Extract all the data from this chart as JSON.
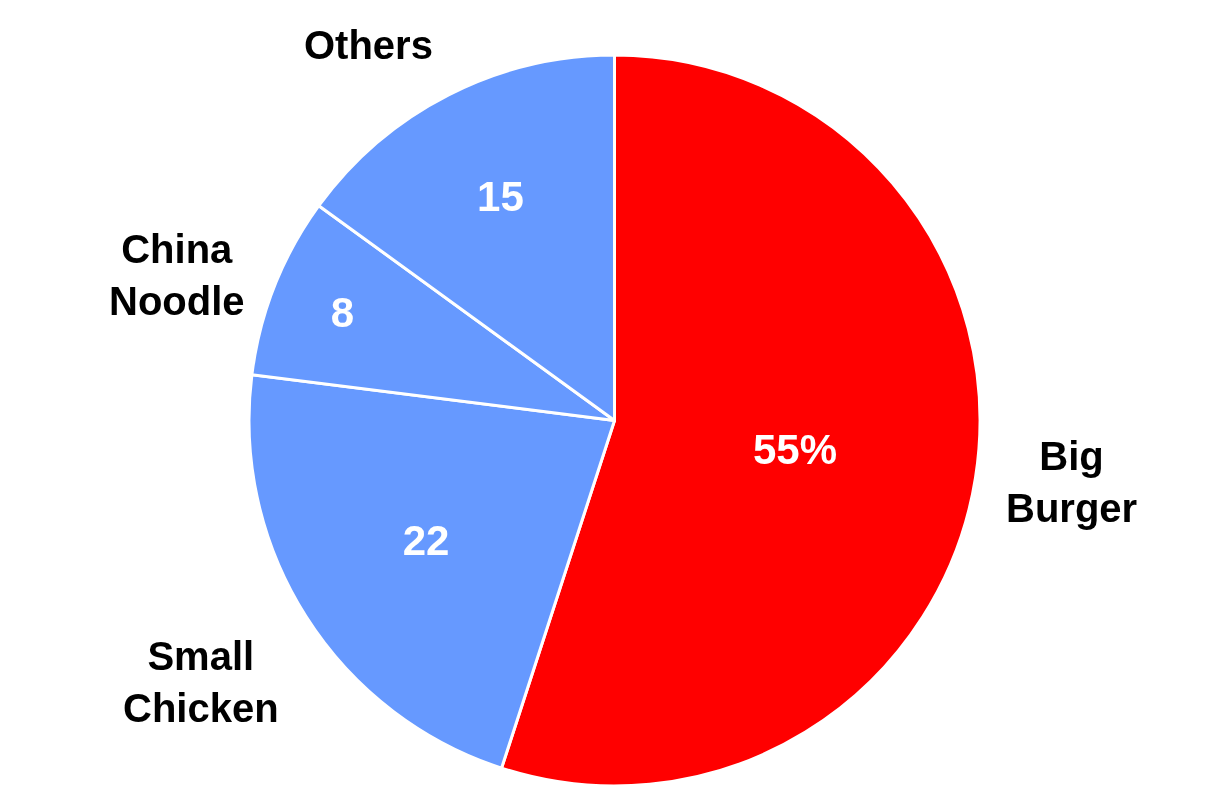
{
  "chart_data": {
    "type": "pie",
    "categories": [
      "Big Burger",
      "Small Chicken",
      "China Noodle",
      "Others"
    ],
    "values": [
      55,
      22,
      8,
      15
    ],
    "colors": [
      "#ff0000",
      "#6699ff",
      "#6699ff",
      "#6699ff"
    ],
    "value_labels": [
      "55%",
      "22",
      "8",
      "15"
    ],
    "legend": false
  }
}
